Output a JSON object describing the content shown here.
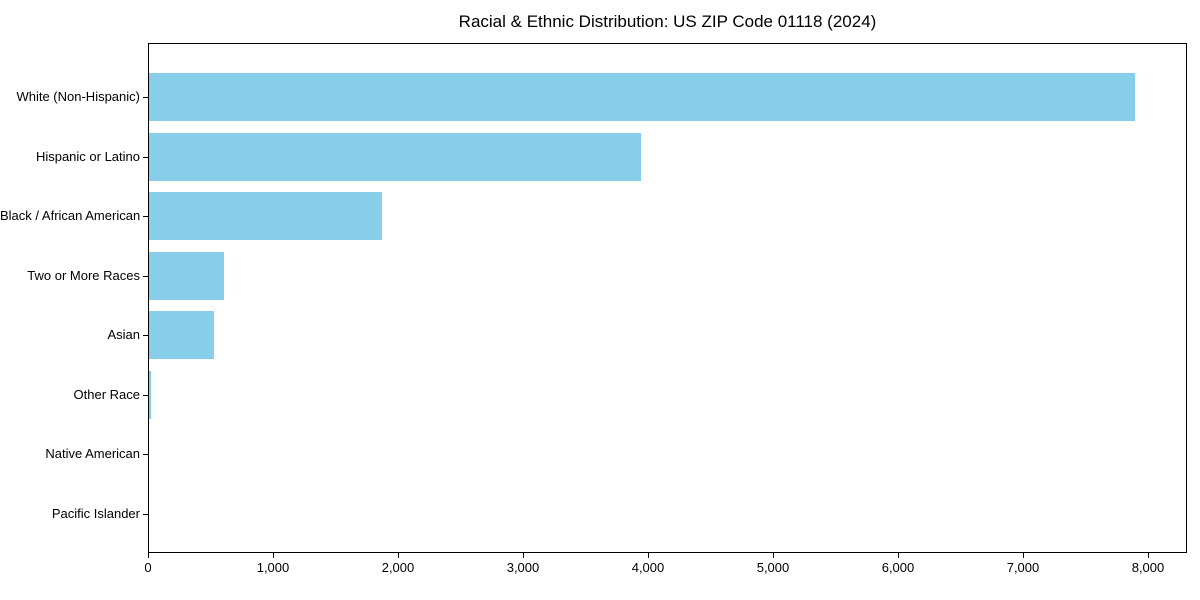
{
  "title": "Racial & Ethnic Distribution: US ZIP Code 01118 (2024)",
  "colors": {
    "bar": "#87CEEB",
    "axis": "#000000",
    "text": "#000000",
    "background": "#ffffff"
  },
  "chart_data": {
    "type": "bar",
    "orientation": "horizontal",
    "title": "Racial & Ethnic Distribution: US ZIP Code 01118 (2024)",
    "xlabel": "",
    "ylabel": "",
    "categories": [
      "White (Non-Hispanic)",
      "Hispanic or Latino",
      "Black / African American",
      "Two or More Races",
      "Asian",
      "Other Race",
      "Native American",
      "Pacific Islander"
    ],
    "values": [
      7900,
      3940,
      1870,
      600,
      520,
      15,
      0,
      0
    ],
    "bar_color": "#87CEEB",
    "xlim": [
      0,
      8312
    ],
    "xticks": [
      0,
      1000,
      2000,
      3000,
      4000,
      5000,
      6000,
      7000,
      8000
    ],
    "xtick_labels": [
      "0",
      "1,000",
      "2,000",
      "3,000",
      "4,000",
      "5,000",
      "6,000",
      "7,000",
      "8,000"
    ],
    "grid": false,
    "legend": "none"
  }
}
